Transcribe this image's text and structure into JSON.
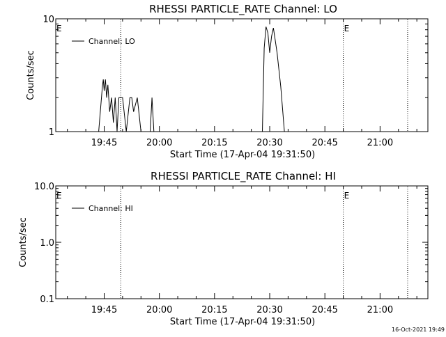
{
  "chart_data": [
    {
      "type": "line",
      "title": "RHESSI PARTICLE_RATE Channel: LO",
      "xlabel": "Start Time (17-Apr-04 19:31:50)",
      "ylabel": "Counts/sec",
      "yscale": "log",
      "ylim": [
        1,
        10
      ],
      "ytick_labels": [
        "1",
        "10"
      ],
      "xlim": [
        "19:31:50",
        "21:13:00"
      ],
      "xtick_labels": [
        "19:45",
        "20:00",
        "20:15",
        "20:30",
        "20:45",
        "21:00"
      ],
      "legend": {
        "position": "top-left",
        "entries": [
          "Channel: LO"
        ]
      },
      "markers": [
        {
          "label": "",
          "time": "19:49:30"
        },
        {
          "label": "E",
          "time": "20:50:00"
        },
        {
          "label": "",
          "time": "21:07:30"
        }
      ],
      "axis_markers": [
        {
          "label": "E",
          "time": "19:31:50"
        }
      ],
      "series": [
        {
          "name": "Channel: LO",
          "time": [
            "19:43:30",
            "19:44:30",
            "19:44:45",
            "19:45:00",
            "19:45:20",
            "19:45:40",
            "19:46:00",
            "19:46:30",
            "19:47:00",
            "19:47:30",
            "19:48:00",
            "19:48:30",
            "19:49:00",
            "19:50:00",
            "19:51:00",
            "19:52:00",
            "19:52:30",
            "19:53:00",
            "19:54:00",
            "19:55:00",
            "19:56:00",
            "19:57:30",
            "19:58:00",
            "19:58:30",
            "20:28:00",
            "20:28:30",
            "20:29:00",
            "20:29:30",
            "20:30:00",
            "20:30:30",
            "20:31:00",
            "20:31:30",
            "20:32:00",
            "20:33:00",
            "20:34:00"
          ],
          "values": [
            1,
            2.5,
            2.9,
            2.3,
            2.9,
            2.0,
            2.6,
            1.5,
            2.0,
            1.2,
            2.0,
            1.0,
            2.0,
            2.0,
            1.0,
            2.0,
            2.0,
            1.5,
            2.0,
            1.0,
            1.0,
            1.0,
            2.0,
            1.0,
            1.0,
            5.5,
            8.5,
            7.5,
            5.0,
            7.0,
            8.3,
            6.5,
            5.0,
            2.5,
            1.0
          ]
        }
      ]
    },
    {
      "type": "line",
      "title": "RHESSI PARTICLE_RATE Channel: HI",
      "xlabel": "Start Time (17-Apr-04 19:31:50)",
      "ylabel": "Counts/sec",
      "yscale": "log",
      "ylim": [
        0.1,
        10
      ],
      "ytick_labels": [
        "0.1",
        "1.0",
        "10.0"
      ],
      "xlim": [
        "19:31:50",
        "21:13:00"
      ],
      "xtick_labels": [
        "19:45",
        "20:00",
        "20:15",
        "20:30",
        "20:45",
        "21:00"
      ],
      "legend": {
        "position": "top-left",
        "entries": [
          "Channel: HI"
        ]
      },
      "markers": [
        {
          "label": "",
          "time": "19:49:30"
        },
        {
          "label": "E",
          "time": "20:50:00"
        },
        {
          "label": "",
          "time": "21:07:30"
        }
      ],
      "axis_markers": [
        {
          "label": "E",
          "time": "19:31:50"
        }
      ],
      "series": [
        {
          "name": "Channel: HI",
          "time": [],
          "values": []
        }
      ]
    }
  ],
  "footer": {
    "timestamp": "16-Oct-2021 19:49"
  }
}
